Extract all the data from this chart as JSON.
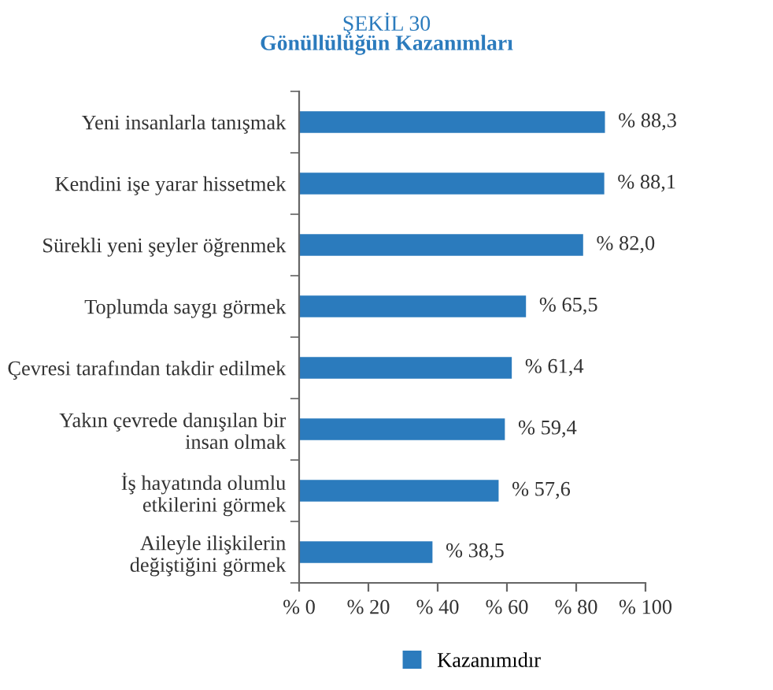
{
  "chart_data": {
    "type": "bar",
    "orientation": "horizontal",
    "title": "ŞEKİL 30",
    "subtitle": "Gönüllülüğün Kazanımları",
    "categories": [
      "Yeni insanlarla tanışmak",
      "Kendini işe yarar hissetmek",
      "Sürekli yeni şeyler öğrenmek",
      "Toplumda saygı görmek",
      "Çevresi tarafından takdir edilmek",
      "Yakın çevrede danışılan bir\ninsan olmak",
      "İş hayatında olumlu\netkilerini görmek",
      "Aileyle ilişkilerin\ndeğiştiğini görmek"
    ],
    "series": [
      {
        "name": "Kazanımıdır",
        "color": "#2b7bbd",
        "values": [
          88.3,
          88.1,
          82.0,
          65.5,
          61.4,
          59.4,
          57.6,
          38.5
        ],
        "value_labels": [
          "% 88,3",
          "% 88,1",
          "% 82,0",
          "% 65,5",
          "% 61,4",
          "% 59,4",
          "% 57,6",
          "% 38,5"
        ]
      }
    ],
    "xlim": [
      0,
      100
    ],
    "xticks": [
      {
        "value": 0,
        "label": "% 0"
      },
      {
        "value": 20,
        "label": "% 20"
      },
      {
        "value": 40,
        "label": "% 40"
      },
      {
        "value": 60,
        "label": "% 60"
      },
      {
        "value": 80,
        "label": "% 80"
      },
      {
        "value": 100,
        "label": "% 100"
      }
    ],
    "grid": false,
    "legend": "bottom"
  }
}
